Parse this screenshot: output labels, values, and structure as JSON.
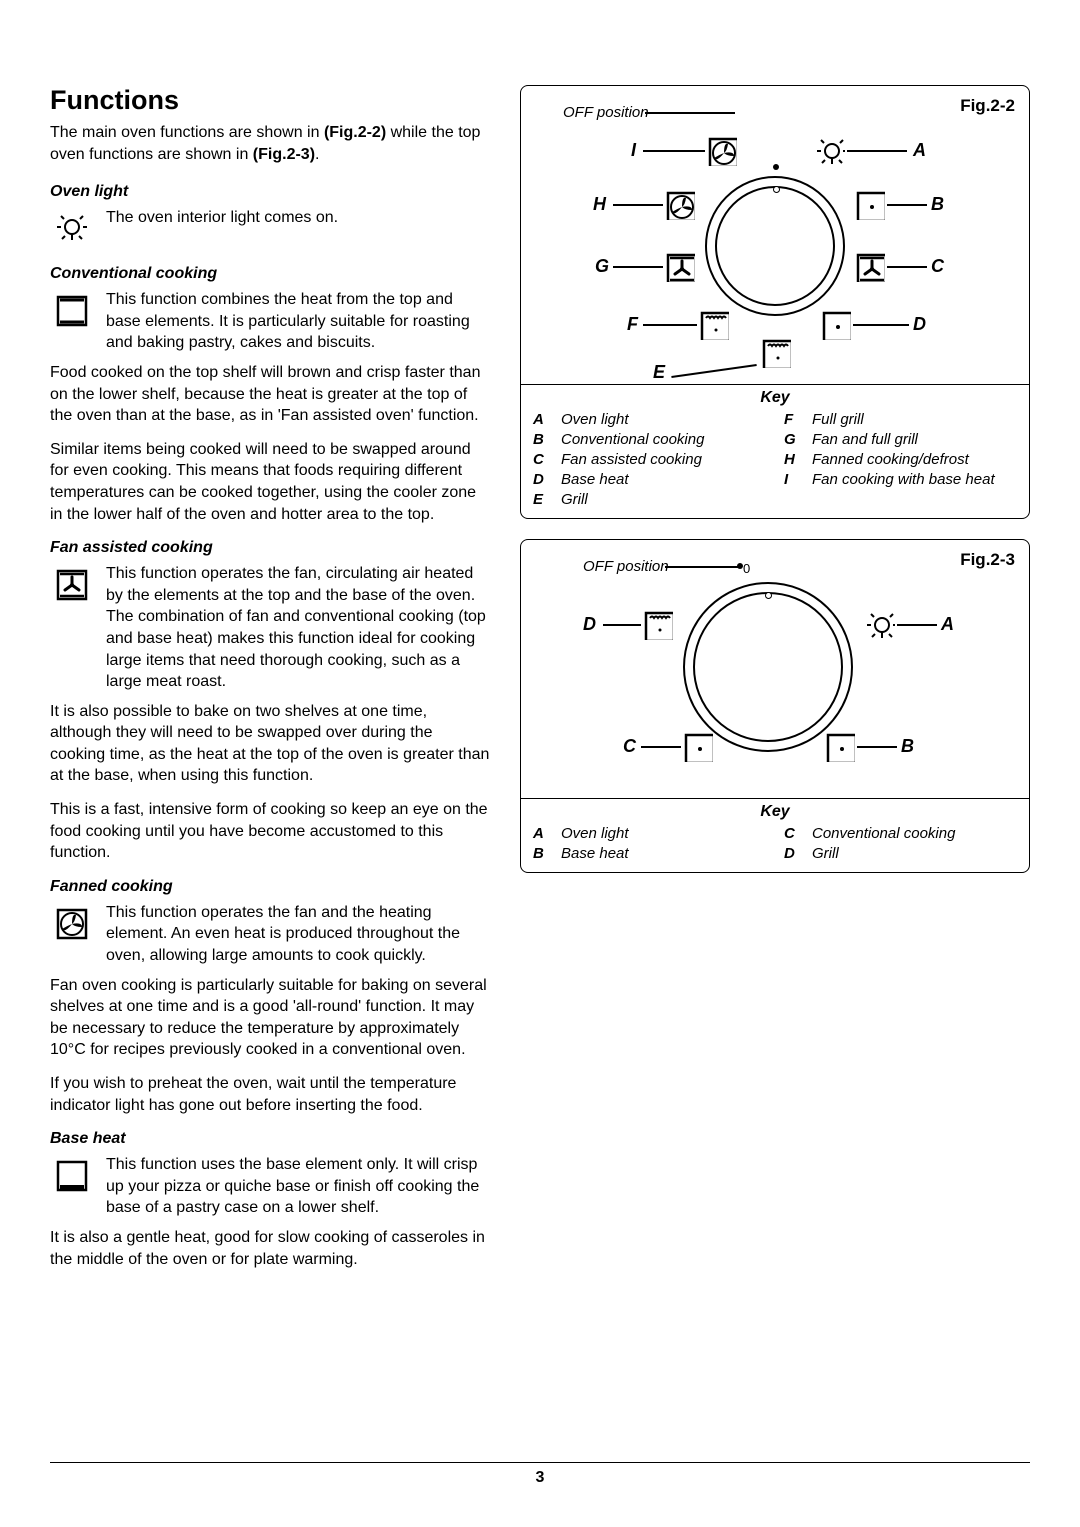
{
  "page_number": "3",
  "heading": "Functions",
  "intro_a": "The main oven functions are shown in ",
  "intro_b": "(Fig.2-2)",
  "intro_c": " while the top oven functions are shown in ",
  "intro_d": "(Fig.2-3)",
  "intro_e": ".",
  "sections": {
    "oven_light": {
      "title": "Oven light",
      "body": "The oven interior light comes on."
    },
    "conventional": {
      "title": "Conventional cooking",
      "body1": "This function combines the heat from the top and base elements. It is particularly suitable for roasting and baking pastry, cakes and biscuits.",
      "p2": "Food cooked on the top shelf will brown and crisp faster than on the lower shelf, because the heat is greater at the top of the oven than at the base, as in 'Fan assisted oven' function.",
      "p3": "Similar items being cooked will need to be swapped around for even cooking. This means that foods requiring different temperatures can be cooked together, using the cooler zone in the lower half of the oven and hotter area to the top."
    },
    "fan_assisted": {
      "title": "Fan assisted cooking",
      "body1": "This function operates the fan, circulating air heated by the elements at the top and the base of the oven. The combination of fan and conventional cooking (top and base heat) makes this function ideal for cooking large items that need thorough cooking, such as a large meat roast.",
      "p2": "It is also possible to bake on two shelves at one time, although they will need to be swapped over during the cooking time, as the heat at the top of the oven is greater than at the base, when using this function.",
      "p3": "This is a fast, intensive form of cooking so keep an eye on the food cooking until you have become accustomed to this function."
    },
    "fanned": {
      "title": "Fanned cooking",
      "body1": "This function operates the fan and the heating element. An even heat is produced throughout the oven, allowing large amounts to cook quickly.",
      "p2": "Fan oven cooking is particularly suitable for baking on several shelves at one time and is a good 'all-round' function. It may be necessary to reduce the temperature by approximately 10°C for recipes previously cooked in a conventional oven.",
      "p3": "If you wish to preheat the oven, wait until the temperature indicator light has gone out before inserting the food."
    },
    "base_heat": {
      "title": "Base heat",
      "body1": "This function uses the base element only. It will crisp up your pizza or quiche base or finish off cooking the base of a pastry case on a lower shelf.",
      "p2": "It is also a gentle heat, good for slow cooking of casseroles in the middle of the oven or for plate warming."
    }
  },
  "fig22": {
    "label": "Fig.2-2",
    "off": "OFF position",
    "key_title": "Key",
    "keys": [
      {
        "l": "A",
        "t": "Oven light"
      },
      {
        "l": "F",
        "t": "Full grill"
      },
      {
        "l": "B",
        "t": "Conventional cooking"
      },
      {
        "l": "G",
        "t": "Fan and full grill"
      },
      {
        "l": "C",
        "t": "Fan assisted cooking"
      },
      {
        "l": "H",
        "t": "Fanned cooking/defrost"
      },
      {
        "l": "D",
        "t": "Base heat"
      },
      {
        "l": "I",
        "t": "Fan cooking with base heat"
      },
      {
        "l": "E",
        "t": "Grill"
      }
    ],
    "markers": [
      "A",
      "B",
      "C",
      "D",
      "E",
      "F",
      "G",
      "H",
      "I"
    ]
  },
  "fig23": {
    "label": "Fig.2-3",
    "off": "OFF position",
    "key_title": "Key",
    "keys": [
      {
        "l": "A",
        "t": "Oven light"
      },
      {
        "l": "C",
        "t": "Conventional cooking"
      },
      {
        "l": "B",
        "t": "Base heat"
      },
      {
        "l": "D",
        "t": "Grill"
      }
    ],
    "markers": [
      "A",
      "B",
      "C",
      "D"
    ]
  }
}
